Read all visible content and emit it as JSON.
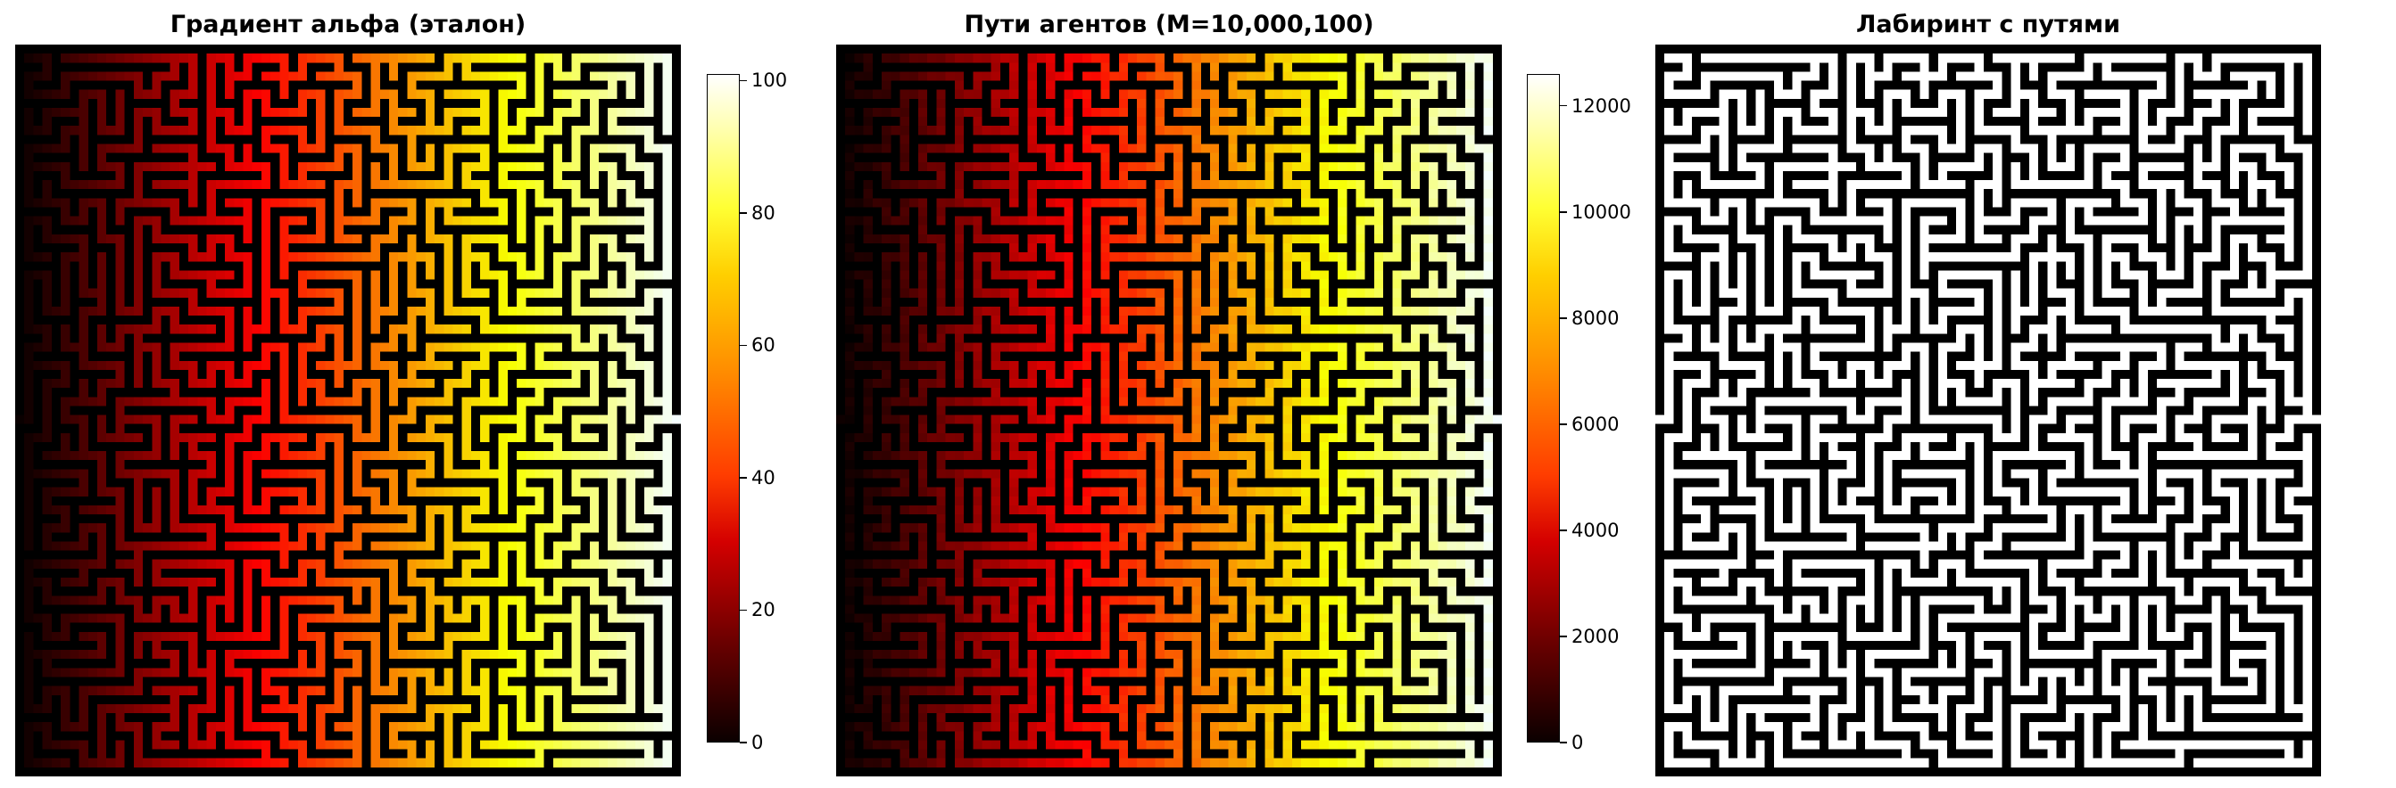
{
  "panels": [
    {
      "title": "Градиент альфа (эталон)",
      "mode": "gradient"
    },
    {
      "title": "Пути агентов (M=10,000,100)",
      "mode": "gradient-noisy"
    },
    {
      "title": "Лабиринт с путями",
      "mode": "binary"
    }
  ],
  "chart_data": [
    {
      "type": "heatmap",
      "title": "Градиент альфа (эталон)",
      "colormap": "hot",
      "trend": "value increases from left edge to right edge along maze corridors",
      "colorbar": {
        "min": 0,
        "max": 101,
        "ticks": [
          0,
          20,
          40,
          60,
          80,
          100
        ]
      }
    },
    {
      "type": "heatmap",
      "title": "Пути агентов (M=10,000,100)",
      "colormap": "hot",
      "trend": "value increases from left edge to right edge along maze corridors",
      "colorbar": {
        "min": 0,
        "max": 12600,
        "ticks": [
          0,
          2000,
          4000,
          6000,
          8000,
          10000,
          12000
        ]
      }
    },
    {
      "type": "heatmap",
      "title": "Лабиринт с путями",
      "colormap": "binary (white corridors, black walls)"
    }
  ],
  "colors": {
    "wall": "#000000",
    "corridor_plain": "#ffffff"
  }
}
